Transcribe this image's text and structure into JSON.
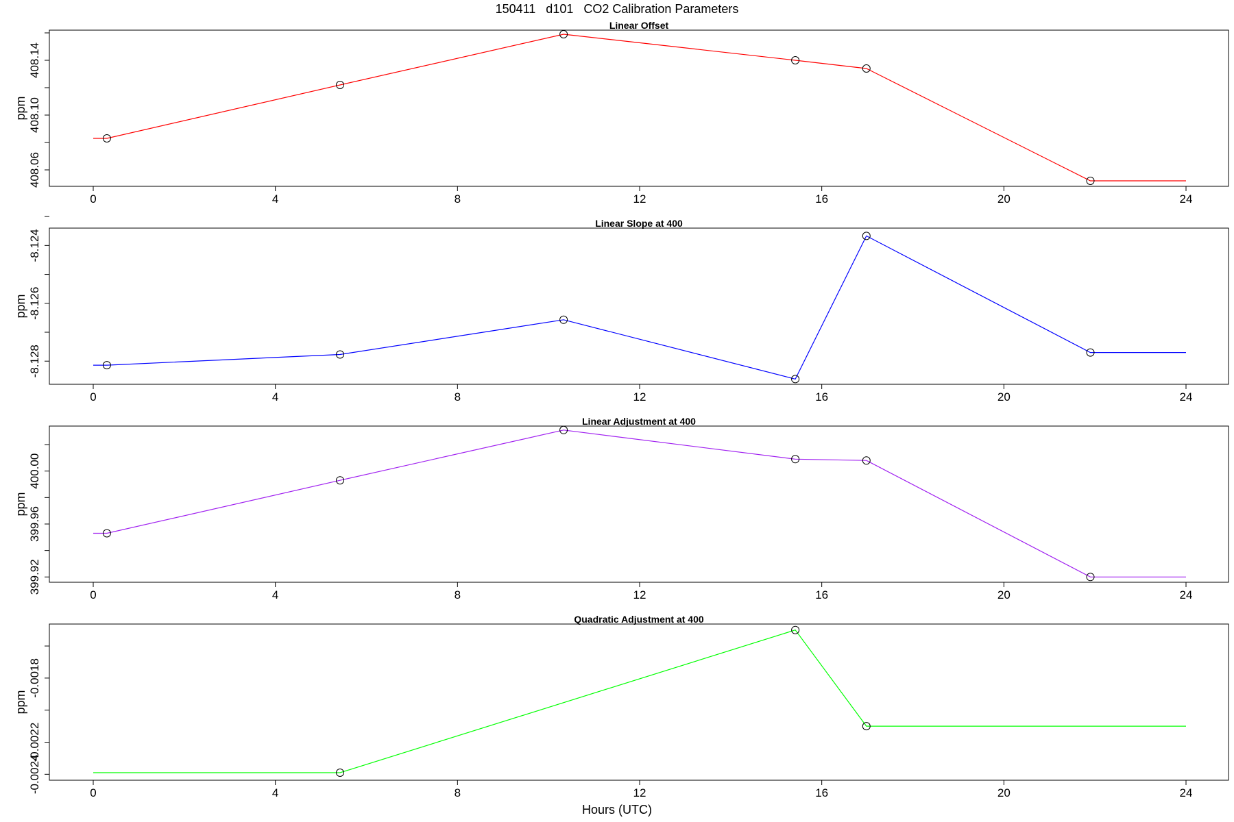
{
  "figure": {
    "title": "150411   d101   CO2 Calibration Parameters",
    "xlabel": "Hours (UTC)"
  },
  "chart_data": [
    {
      "type": "line",
      "title": "Linear Offset",
      "ylabel": "ppm",
      "xlim": [
        0,
        24
      ],
      "ylim": [
        408.048,
        408.162
      ],
      "x_ticks": [
        0,
        4,
        8,
        12,
        16,
        20,
        24
      ],
      "x_tick_labels": [
        "0",
        "4",
        "8",
        "12",
        "16",
        "20",
        "24"
      ],
      "y_ticks": [
        408.06,
        408.08,
        408.1,
        408.12,
        408.14,
        408.16
      ],
      "y_tick_labels": [
        "408.06",
        "",
        "408.10",
        "",
        "408.14",
        ""
      ],
      "color": "#ff0000",
      "points_x": [
        0.3,
        5.42,
        10.33,
        15.42,
        16.98,
        21.9
      ],
      "points_y": [
        408.083,
        408.122,
        408.159,
        408.14,
        408.134,
        408.052
      ],
      "line_x": [
        0,
        0.3,
        5.42,
        10.33,
        15.42,
        16.98,
        21.9,
        24
      ],
      "line_y": [
        408.083,
        408.083,
        408.122,
        408.159,
        408.14,
        408.134,
        408.052,
        408.052
      ]
    },
    {
      "type": "line",
      "title": "Linear Slope at 400",
      "ylabel": "ppm",
      "xlim": [
        0,
        24
      ],
      "ylim": [
        -8.1288,
        -8.1234
      ],
      "x_ticks": [
        0,
        4,
        8,
        12,
        16,
        20,
        24
      ],
      "x_tick_labels": [
        "0",
        "4",
        "8",
        "12",
        "16",
        "20",
        "24"
      ],
      "y_ticks": [
        -8.128,
        -8.127,
        -8.126,
        -8.125,
        -8.124,
        -8.123
      ],
      "y_tick_labels": [
        "-8.128",
        "",
        "-8.126",
        "",
        "-8.124",
        ""
      ],
      "color": "#0000ff",
      "points_x": [
        0.3,
        5.42,
        10.33,
        15.42,
        16.98,
        21.9
      ],
      "points_y": [
        -8.12814,
        -8.12777,
        -8.12657,
        -8.12862,
        -8.12367,
        -8.1277
      ],
      "line_x": [
        0,
        0.3,
        5.42,
        10.33,
        15.42,
        16.98,
        21.9,
        24
      ],
      "line_y": [
        -8.12814,
        -8.12814,
        -8.12777,
        -8.12657,
        -8.12862,
        -8.12367,
        -8.1277,
        -8.1277
      ]
    },
    {
      "type": "line",
      "title": "Linear Adjustment at 400",
      "ylabel": "ppm",
      "xlim": [
        0,
        24
      ],
      "ylim": [
        399.916,
        400.034
      ],
      "x_ticks": [
        0,
        4,
        8,
        12,
        16,
        20,
        24
      ],
      "x_tick_labels": [
        "0",
        "4",
        "8",
        "12",
        "16",
        "20",
        "24"
      ],
      "y_ticks": [
        399.92,
        399.94,
        399.96,
        399.98,
        400.0,
        400.02
      ],
      "y_tick_labels": [
        "399.92",
        "",
        "399.96",
        "",
        "400.00",
        ""
      ],
      "color": "#a020f0",
      "points_x": [
        0.3,
        5.42,
        10.33,
        15.42,
        16.98,
        21.9
      ],
      "points_y": [
        399.953,
        399.993,
        400.031,
        400.009,
        400.008,
        399.92
      ],
      "line_x": [
        0,
        0.3,
        5.42,
        10.33,
        15.42,
        16.98,
        21.9,
        24
      ],
      "line_y": [
        399.953,
        399.953,
        399.993,
        400.031,
        400.009,
        400.008,
        399.92,
        399.92
      ]
    },
    {
      "type": "line",
      "title": "Quadratic Adjustment at 400",
      "ylabel": "ppm",
      "xlim": [
        0,
        24
      ],
      "ylim": [
        -0.002437,
        -0.001463
      ],
      "x_ticks": [
        0,
        4,
        8,
        12,
        16,
        20,
        24
      ],
      "x_tick_labels": [
        "0",
        "4",
        "8",
        "12",
        "16",
        "20",
        "24"
      ],
      "y_ticks": [
        -0.0024,
        -0.0022,
        -0.002,
        -0.0018,
        -0.0016
      ],
      "y_tick_labels": [
        "-0.0024",
        "-0.0022",
        "",
        "-0.0018",
        ""
      ],
      "color": "#00ff00",
      "points_x": [
        5.42,
        15.42,
        16.98
      ],
      "points_y": [
        -0.00239,
        -0.0015,
        -0.0021
      ],
      "line_x": [
        0,
        5.42,
        15.42,
        16.98,
        24
      ],
      "line_y": [
        -0.00239,
        -0.00239,
        -0.0015,
        -0.0021,
        -0.0021
      ]
    }
  ]
}
